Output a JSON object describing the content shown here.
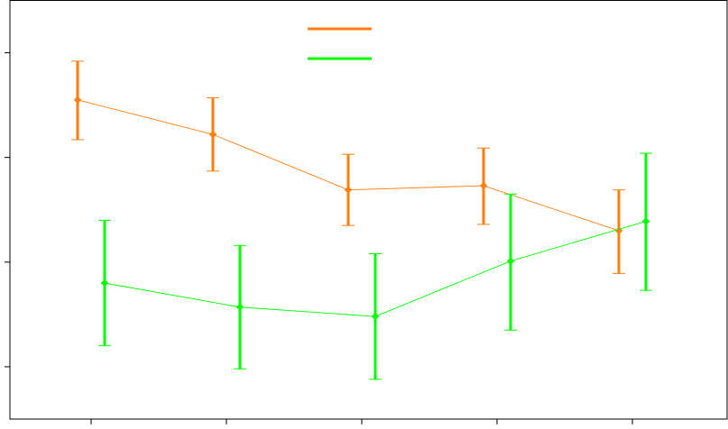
{
  "chart_data": {
    "type": "line",
    "error_bars": true,
    "legend_position": "top-center",
    "grid": false,
    "x": [
      1,
      2,
      3,
      4,
      5
    ],
    "xlim": [
      0.4,
      5.7
    ],
    "ylim": [
      0.0,
      4.0
    ],
    "series": [
      {
        "color": "#ff7f0e",
        "values": [
          3.05,
          2.72,
          2.19,
          2.23,
          1.8
        ],
        "err_low": [
          2.67,
          2.37,
          1.85,
          1.86,
          1.39
        ],
        "err_high": [
          3.42,
          3.07,
          2.53,
          2.59,
          2.19
        ]
      },
      {
        "color": "#00ff00",
        "values": [
          1.3,
          1.07,
          0.98,
          1.51,
          1.89
        ],
        "err_low": [
          0.7,
          0.48,
          0.38,
          0.85,
          1.23
        ],
        "err_high": [
          1.9,
          1.66,
          1.58,
          2.15,
          2.54
        ]
      }
    ]
  }
}
